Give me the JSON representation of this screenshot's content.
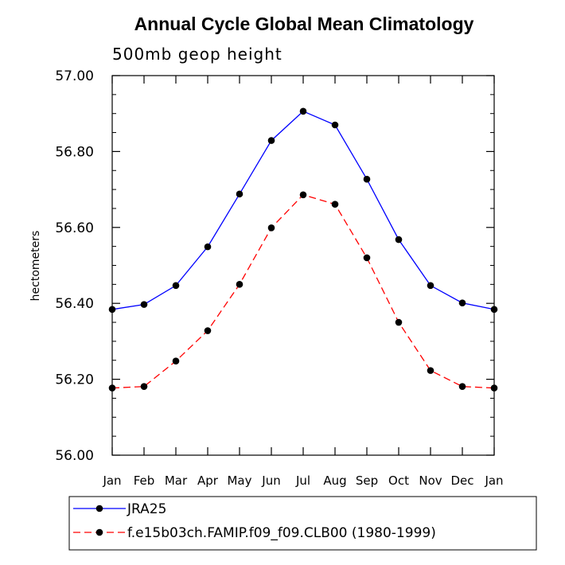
{
  "chart_data": {
    "type": "line",
    "title": "Annual Cycle Global Mean Climatology",
    "subtitle": "500mb geop height",
    "xlabel": "",
    "ylabel": "hectometers",
    "categories": [
      "Jan",
      "Feb",
      "Mar",
      "Apr",
      "May",
      "Jun",
      "Jul",
      "Aug",
      "Sep",
      "Oct",
      "Nov",
      "Dec",
      "Jan"
    ],
    "ylim": [
      56.0,
      57.0
    ],
    "yticks": [
      "56.00",
      "56.20",
      "56.40",
      "56.60",
      "56.80",
      "57.00"
    ],
    "grid": false,
    "legend_position": "bottom",
    "series": [
      {
        "name": "JRA25",
        "color": "#0000ff",
        "line_style": "solid",
        "marker": "filled-circle",
        "values": [
          56.384,
          56.397,
          56.447,
          56.549,
          56.688,
          56.829,
          56.906,
          56.87,
          56.727,
          56.568,
          56.447,
          56.401,
          56.384
        ]
      },
      {
        "name": "f.e15b03ch.FAMIP.f09_f09.CLB00 (1980-1999)",
        "color": "#ff0000",
        "line_style": "dashed",
        "marker": "filled-circle",
        "values": [
          56.177,
          56.181,
          56.248,
          56.328,
          56.45,
          56.599,
          56.686,
          56.661,
          56.52,
          56.35,
          56.223,
          56.181,
          56.177
        ]
      }
    ]
  }
}
